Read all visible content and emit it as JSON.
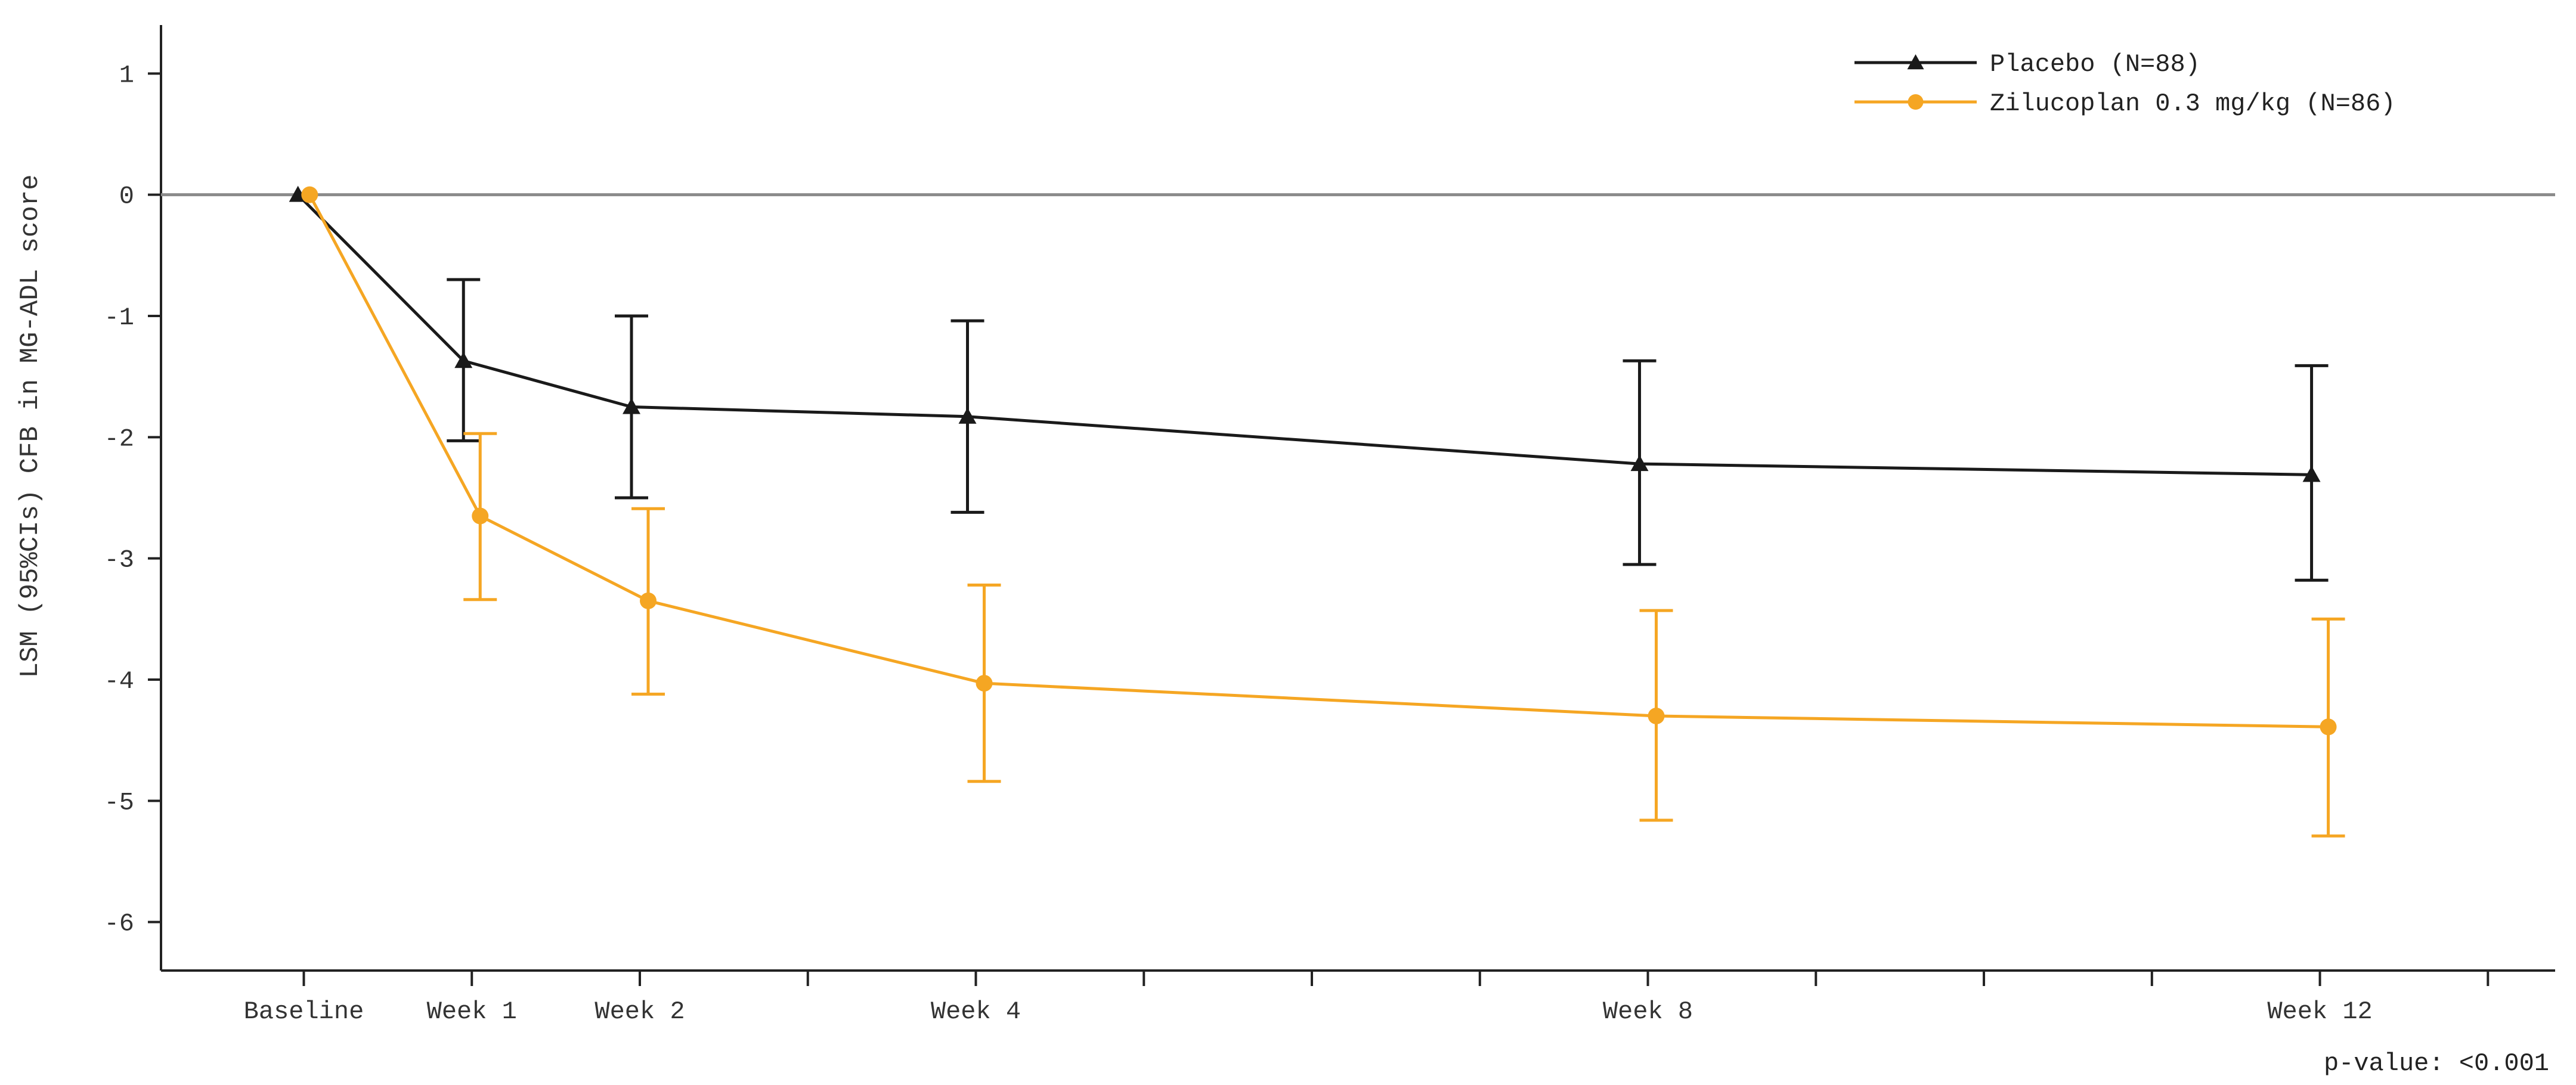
{
  "chart_data": {
    "type": "line",
    "title": "",
    "xlabel": "",
    "ylabel": "LSM (95%CIs) CFB in MG-ADL score",
    "ylim": [
      -6.4,
      1.4
    ],
    "yticks": [
      "1",
      "0",
      "-1",
      "-2",
      "-3",
      "-4",
      "-5",
      "-6"
    ],
    "xticks": [
      "Baseline",
      "Week 1",
      "Week 2",
      "Week 4",
      "Week 8",
      "Week 12"
    ],
    "x_weeks": [
      0,
      1,
      2,
      4,
      8,
      12
    ],
    "x_axis_max_week": 13.4,
    "reference_line_y": 0,
    "legend_position": "top-right",
    "note": "p-value: <0.001",
    "series": [
      {
        "name": "Placebo (N=88)",
        "marker": "triangle",
        "color": "#1a1a1a",
        "values": [
          0,
          -1.37,
          -1.75,
          -1.83,
          -2.22,
          -2.31
        ],
        "ci_lower": [
          null,
          -2.03,
          -2.5,
          -2.62,
          -3.05,
          -3.18
        ],
        "ci_upper": [
          null,
          -0.7,
          -1.0,
          -1.04,
          -1.37,
          -1.41
        ]
      },
      {
        "name": "Zilucoplan 0.3 mg/kg (N=86)",
        "marker": "circle",
        "color": "#f5a623",
        "values": [
          0,
          -2.65,
          -3.35,
          -4.03,
          -4.3,
          -4.39
        ],
        "ci_lower": [
          null,
          -3.34,
          -4.12,
          -4.84,
          -5.16,
          -5.29
        ],
        "ci_upper": [
          null,
          -1.97,
          -2.59,
          -3.22,
          -3.43,
          -3.5
        ]
      }
    ]
  }
}
